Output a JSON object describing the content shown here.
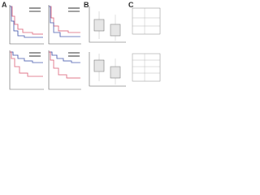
{
  "figure": {
    "panels": [
      {
        "label": "A"
      },
      {
        "label": "B"
      },
      {
        "label": "C"
      }
    ]
  }
}
